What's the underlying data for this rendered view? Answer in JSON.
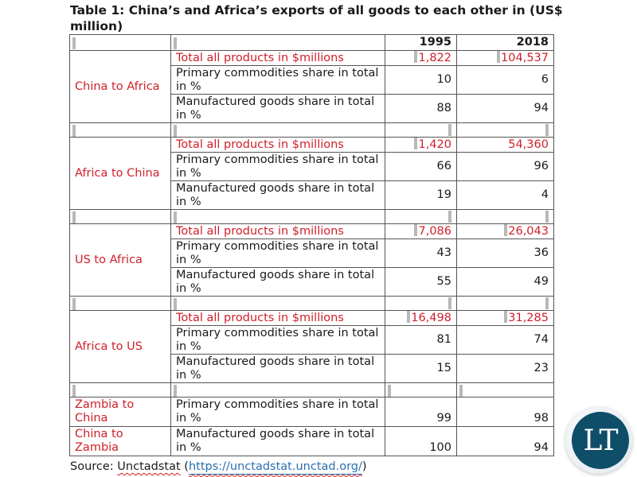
{
  "title": "Table 1: China’s and Africa’s exports of all goods to each other in (US$ million)",
  "header": {
    "col1": "",
    "col2": "",
    "year1": "1995",
    "year2": "2018"
  },
  "groups": [
    {
      "label": "China to Africa",
      "total": {
        "label": "Total all products in $millions",
        "v1995": "1,822",
        "v2018": "104,537"
      },
      "primary": {
        "label": "Primary commodities share in total in %",
        "v1995": "10",
        "v2018": "6"
      },
      "manufactured": {
        "label": "Manufactured goods share in total in %",
        "v1995": "88",
        "v2018": "94"
      }
    },
    {
      "label": "Africa to China",
      "total": {
        "label": "Total all products in $millions",
        "v1995": "1,420",
        "v2018": "54,360"
      },
      "primary": {
        "label": "Primary commodities share in total in %",
        "v1995": "66",
        "v2018": "96"
      },
      "manufactured": {
        "label": "Manufactured goods share in total in %",
        "v1995": "19",
        "v2018": "4"
      }
    },
    {
      "label": "US to Africa",
      "total": {
        "label": "Total all products in $millions",
        "v1995": "7,086",
        "v2018": "26,043"
      },
      "primary": {
        "label": "Primary commodities share in total in %",
        "v1995": "43",
        "v2018": "36"
      },
      "manufactured": {
        "label": "Manufactured goods share in total in %",
        "v1995": "55",
        "v2018": "49"
      }
    },
    {
      "label": "Africa to US",
      "total": {
        "label": "Total all products in $millions",
        "v1995": "16,498",
        "v2018": "31,285"
      },
      "primary": {
        "label": "Primary commodities share in total in %",
        "v1995": "81",
        "v2018": "74"
      },
      "manufactured": {
        "label": "Manufactured goods share in total in %",
        "v1995": "15",
        "v2018": "23"
      }
    }
  ],
  "zambia": [
    {
      "label": "Zambia to China",
      "metric": "Primary commodities share in total in %",
      "v1995": "99",
      "v2018": "98"
    },
    {
      "label": "China to Zambia",
      "metric": "Manufactured goods share in total in %",
      "v1995": "100",
      "v2018": "94"
    }
  ],
  "source": {
    "prefix": "Source: ",
    "name": "Unctadstat",
    "open_paren": " (",
    "url_text": "https://unctadstat.unctad.org/",
    "close_paren": ")"
  },
  "logo": {
    "text": "LT"
  },
  "colors": {
    "red_text": "#d0202a",
    "border": "#555555",
    "marker": "#b8b8b8",
    "logo_blue": "#0f4e69",
    "link": "#2a6fb0"
  }
}
